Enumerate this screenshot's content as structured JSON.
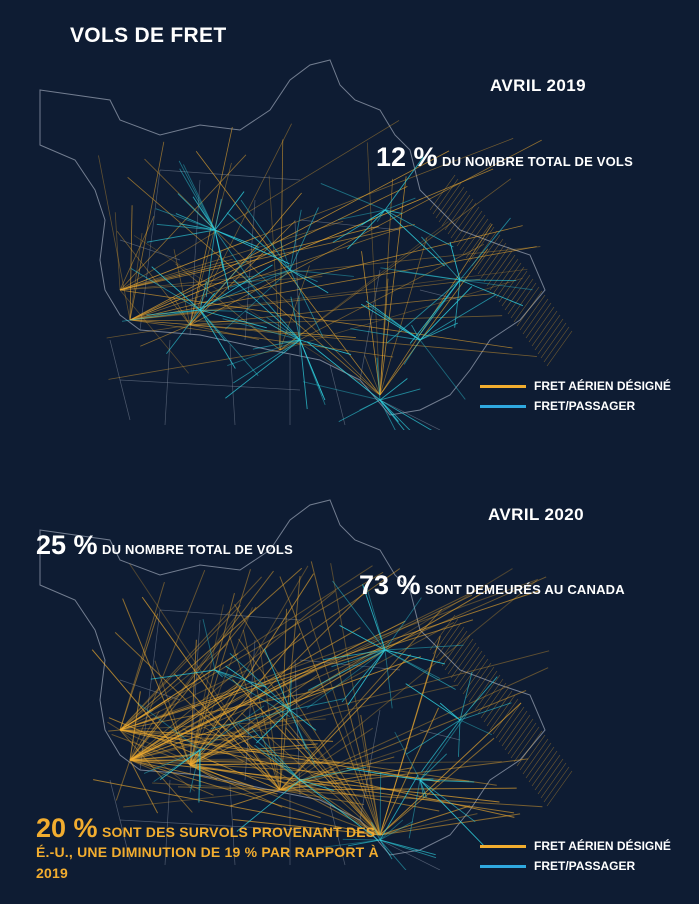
{
  "title": "VOLS DE FRET",
  "colors": {
    "background": "#0e1c33",
    "cargo": "#f2ad2f",
    "passenger": "#2fd2e0",
    "outline": "#8c96a8",
    "highlight": "#f2ad2f"
  },
  "panels": [
    {
      "period": "AVRIL 2019",
      "stats": [
        {
          "value": "12 %",
          "text": "DU NOMBRE TOTAL DE VOLS"
        }
      ],
      "legend": [
        {
          "label": "FRET AÉRIEN DÉSIGNÉ",
          "color": "#f2ad2f"
        },
        {
          "label": "FRET/PASSAGER",
          "color": "#2fa8e0"
        }
      ]
    },
    {
      "period": "AVRIL 2020",
      "stats": [
        {
          "value": "25 %",
          "text": "DU NOMBRE TOTAL DE VOLS"
        },
        {
          "value": "73 %",
          "text": "SONT DEMEURÉS AU CANADA"
        },
        {
          "value": "20 %",
          "text": "SONT DES SURVOLS PROVENANT DES",
          "text_line2": "É.-U., UNE DIMINUTION DE 19 % PAR RAPPORT À",
          "text_line3": "2019"
        }
      ],
      "legend": [
        {
          "label": "FRET AÉRIEN DÉSIGNÉ",
          "color": "#f2ad2f"
        },
        {
          "label": "FRET/PASSAGER",
          "color": "#2fa8e0"
        }
      ]
    }
  ]
}
